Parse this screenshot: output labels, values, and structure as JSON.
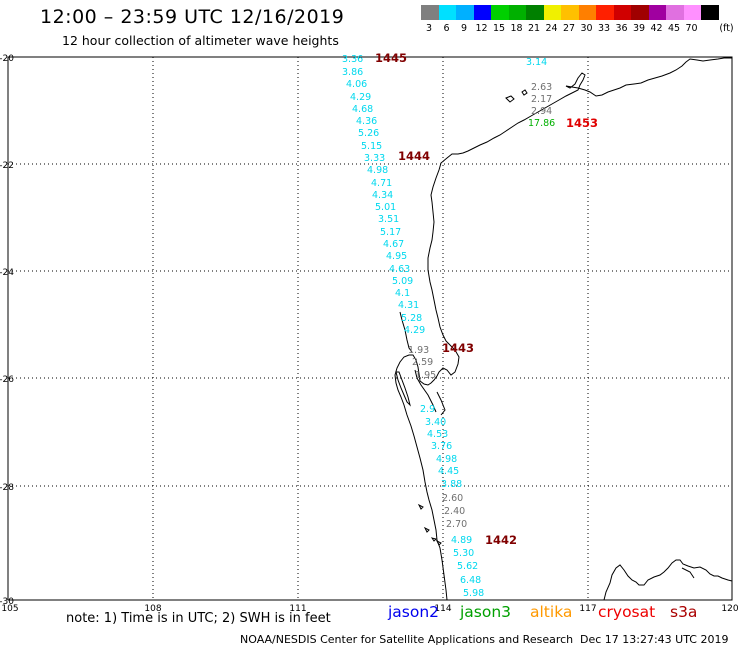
{
  "header": {
    "title": "12:00 – 23:59 UTC 12/16/2019",
    "subtitle": "12 hour collection of altimeter wave heights"
  },
  "color_scale": {
    "unit": "(ft)",
    "bins": [
      {
        "label": "3",
        "color": "#7f7f7f"
      },
      {
        "label": "6",
        "color": "#00e0ff"
      },
      {
        "label": "9",
        "color": "#00b0ff"
      },
      {
        "label": "12",
        "color": "#0000ff"
      },
      {
        "label": "15",
        "color": "#00d000"
      },
      {
        "label": "18",
        "color": "#00b000"
      },
      {
        "label": "21",
        "color": "#008000"
      },
      {
        "label": "24",
        "color": "#f0f000"
      },
      {
        "label": "27",
        "color": "#ffc000"
      },
      {
        "label": "30",
        "color": "#ff7f00"
      },
      {
        "label": "33",
        "color": "#ff2000"
      },
      {
        "label": "36",
        "color": "#d00000"
      },
      {
        "label": "39",
        "color": "#a00000"
      },
      {
        "label": "42",
        "color": "#a000a0"
      },
      {
        "label": "45",
        "color": "#e070e0"
      },
      {
        "label": "70",
        "color": "#ff90ff"
      },
      {
        "label": "",
        "color": "#000000"
      }
    ]
  },
  "axes": {
    "lat_labels": [
      "-20",
      "-22",
      "-24",
      "-26",
      "-28",
      "-30"
    ],
    "lon_labels": [
      "105",
      "108",
      "111",
      "114",
      "117",
      "120"
    ]
  },
  "pass_labels": [
    {
      "text": "1445",
      "color": "#800000"
    },
    {
      "text": "1444",
      "color": "#800000"
    },
    {
      "text": "1443",
      "color": "#800000"
    },
    {
      "text": "1442",
      "color": "#800000"
    },
    {
      "text": "1453",
      "color": "#e00000"
    }
  ],
  "tracks": {
    "track_1445": [
      "3.36",
      "3.86",
      "4.06",
      "4.29",
      "4.68",
      "4.36",
      "5.26",
      "5.15",
      "3.33",
      "4.98",
      "4.71",
      "4.34",
      "5.01",
      "3.51",
      "5.17",
      "4.67",
      "4.95",
      "4.63",
      "5.09",
      "4.1",
      "4.31",
      "5.28",
      "4.29",
      "1.93",
      "2.59",
      "1.95",
      "2.9",
      "3.40",
      "4.53",
      "3.76",
      "4.98",
      "4.45",
      "3.88",
      "2.60",
      "2.40",
      "2.70",
      "4.89",
      "5.30",
      "5.62",
      "6.48",
      "5.98"
    ],
    "track_1453": [
      "3.14",
      "2.63",
      "2.17",
      "2.94",
      "17.86"
    ]
  },
  "satellites": [
    {
      "name": "jason2",
      "color": "#0000ee"
    },
    {
      "name": "jason3",
      "color": "#00a000"
    },
    {
      "name": "altika",
      "color": "#ff9900"
    },
    {
      "name": "cryosat",
      "color": "#ee0000"
    },
    {
      "name": "s3a",
      "color": "#aa0000"
    }
  ],
  "note": "note:  1) Time is in UTC;  2) SWH is in feet",
  "footer": {
    "credit": "NOAA/NESDIS Center for Satellite Applications and Research",
    "timestamp": "Dec 17 13:27:43 UTC 2019"
  }
}
